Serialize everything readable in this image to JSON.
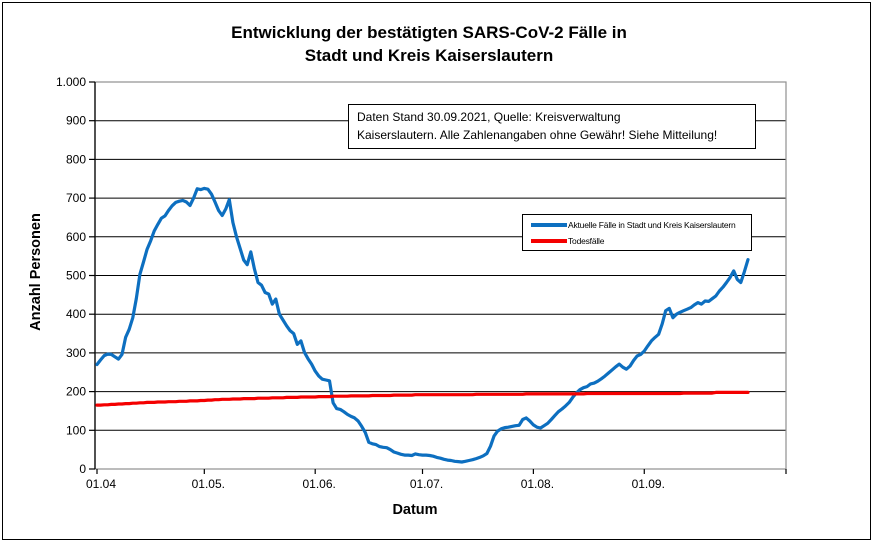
{
  "title": {
    "line1": "Entwicklung der bestätigten SARS-CoV-2 Fälle in",
    "line2": "Stadt und Kreis Kaiserslautern"
  },
  "annotation": {
    "line1": "Daten Stand 30.09.2021, Quelle: Kreisverwaltung",
    "line2": "Kaiserslautern. Alle Zahlenangaben ohne Gewähr! Siehe Mitteilung!"
  },
  "chart_data": {
    "type": "line",
    "title": "Entwicklung der bestätigten SARS-CoV-2 Fälle in Stadt und Kreis Kaiserslautern",
    "xlabel": "Datum",
    "ylabel": "Anzahl Personen",
    "ylim": [
      0,
      1000
    ],
    "grid": "horizontal",
    "legend_position": "middle-right",
    "yticks": [
      0,
      100,
      200,
      300,
      400,
      500,
      600,
      700,
      800,
      900,
      1000
    ],
    "ytick_labels": [
      "0",
      "100",
      "200",
      "300",
      "400",
      "500",
      "600",
      "700",
      "800",
      "900",
      "1.000"
    ],
    "xtick_labels": [
      "01.04",
      "01.05.",
      "01.06.",
      "01.07.",
      "01.08.",
      "01.09."
    ],
    "x_month_start_indices": [
      0,
      30,
      61,
      91,
      122,
      153
    ],
    "x_start_date": "01.04.2021",
    "x_end_date": "30.09.2021",
    "series": [
      {
        "name": "Aktuelle Fälle in Stadt und Kreis Kaiserslautern",
        "color": "#0d6fc0",
        "values": [
          270,
          282,
          293,
          297,
          296,
          290,
          284,
          296,
          340,
          361,
          391,
          440,
          503,
          535,
          568,
          590,
          615,
          632,
          648,
          654,
          668,
          680,
          689,
          692,
          694,
          690,
          681,
          700,
          724,
          722,
          725,
          723,
          710,
          690,
          668,
          655,
          672,
          696,
          637,
          600,
          570,
          540,
          528,
          561,
          517,
          482,
          475,
          456,
          452,
          426,
          439,
          400,
          385,
          370,
          357,
          350,
          322,
          331,
          301,
          285,
          271,
          253,
          240,
          232,
          230,
          228,
          171,
          156,
          154,
          148,
          141,
          136,
          132,
          124,
          110,
          94,
          69,
          65,
          63,
          58,
          56,
          55,
          50,
          44,
          41,
          38,
          36,
          36,
          35,
          39,
          37,
          36,
          36,
          35,
          33,
          30,
          28,
          25,
          23,
          22,
          20,
          19,
          18,
          20,
          22,
          24,
          27,
          30,
          34,
          40,
          59,
          85,
          98,
          104,
          107,
          108,
          110,
          112,
          113,
          128,
          132,
          124,
          114,
          108,
          106,
          112,
          118,
          128,
          138,
          148,
          155,
          163,
          172,
          185,
          196,
          205,
          210,
          213,
          220,
          222,
          227,
          233,
          240,
          248,
          256,
          264,
          271,
          263,
          258,
          266,
          280,
          292,
          296,
          305,
          318,
          331,
          340,
          348,
          375,
          409,
          415,
          391,
          400,
          405,
          409,
          413,
          417,
          424,
          430,
          426,
          434,
          433,
          440,
          447,
          460,
          470,
          482,
          495,
          512,
          490,
          482,
          510,
          541
        ]
      },
      {
        "name": "Todesfälle",
        "color": "#f40000",
        "values": [
          165,
          165,
          166,
          166,
          167,
          167,
          168,
          168,
          169,
          169,
          170,
          170,
          171,
          171,
          172,
          172,
          172,
          173,
          173,
          173,
          174,
          174,
          174,
          175,
          175,
          175,
          176,
          176,
          176,
          177,
          177,
          178,
          178,
          179,
          179,
          180,
          180,
          180,
          181,
          181,
          181,
          182,
          182,
          182,
          182,
          183,
          183,
          183,
          183,
          184,
          184,
          184,
          184,
          185,
          185,
          185,
          185,
          186,
          186,
          186,
          186,
          186,
          187,
          187,
          187,
          187,
          188,
          188,
          188,
          188,
          188,
          189,
          189,
          189,
          189,
          189,
          189,
          190,
          190,
          190,
          190,
          190,
          190,
          191,
          191,
          191,
          191,
          191,
          191,
          192,
          192,
          192,
          192,
          192,
          192,
          192,
          192,
          192,
          192,
          192,
          192,
          192,
          192,
          192,
          192,
          192,
          193,
          193,
          193,
          193,
          193,
          193,
          193,
          193,
          193,
          193,
          193,
          193,
          193,
          193,
          194,
          194,
          194,
          194,
          194,
          194,
          194,
          194,
          194,
          194,
          194,
          194,
          194,
          194,
          194,
          194,
          194,
          195,
          195,
          195,
          195,
          195,
          195,
          195,
          195,
          195,
          195,
          195,
          195,
          195,
          195,
          195,
          195,
          195,
          195,
          195,
          195,
          195,
          195,
          195,
          195,
          195,
          195,
          195,
          196,
          196,
          196,
          196,
          196,
          196,
          196,
          196,
          196,
          198,
          198,
          198,
          198,
          198,
          198,
          198,
          198,
          198,
          198
        ]
      }
    ]
  }
}
